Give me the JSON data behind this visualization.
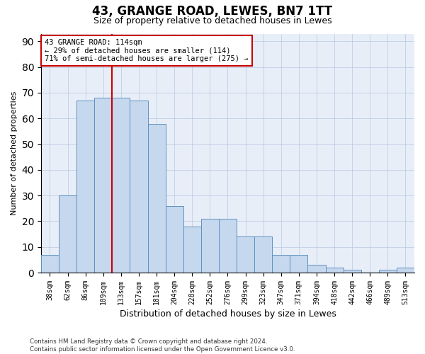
{
  "title": "43, GRANGE ROAD, LEWES, BN7 1TT",
  "subtitle": "Size of property relative to detached houses in Lewes",
  "xlabel": "Distribution of detached houses by size in Lewes",
  "ylabel": "Number of detached properties",
  "bar_color": "#c5d8ee",
  "bar_edge_color": "#6090c0",
  "background_color": "#e8eef8",
  "categories": [
    "38sqm",
    "62sqm",
    "86sqm",
    "109sqm",
    "133sqm",
    "157sqm",
    "181sqm",
    "204sqm",
    "228sqm",
    "252sqm",
    "276sqm",
    "299sqm",
    "323sqm",
    "347sqm",
    "371sqm",
    "394sqm",
    "418sqm",
    "442sqm",
    "466sqm",
    "489sqm",
    "513sqm"
  ],
  "values": [
    7,
    30,
    67,
    68,
    68,
    67,
    58,
    26,
    18,
    21,
    21,
    14,
    14,
    7,
    7,
    3,
    2,
    1,
    0,
    1,
    2
  ],
  "ylim": [
    0,
    93
  ],
  "yticks": [
    0,
    10,
    20,
    30,
    40,
    50,
    60,
    70,
    80,
    90
  ],
  "property_line_x": 3.5,
  "annotation_text": "43 GRANGE ROAD: 114sqm\n← 29% of detached houses are smaller (114)\n71% of semi-detached houses are larger (275) →",
  "annotation_box_color": "#ffffff",
  "annotation_border_color": "#cc0000",
  "footer": "Contains HM Land Registry data © Crown copyright and database right 2024.\nContains public sector information licensed under the Open Government Licence v3.0.",
  "gridcolor": "#b8c8e0"
}
